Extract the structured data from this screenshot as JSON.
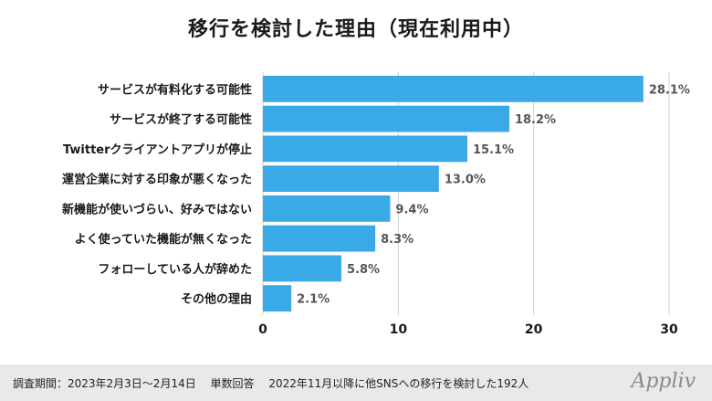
{
  "chart_data": {
    "type": "bar",
    "orientation": "horizontal",
    "title": "移行を検討した理由（現在利用中）",
    "categories": [
      "サービスが有料化する可能性",
      "サービスが終了する可能性",
      "Twitterクライアントアプリが停止",
      "運営企業に対する印象が悪くなった",
      "新機能が使いづらい、好みではない",
      "よく使っていた機能が無くなった",
      "フォローしている人が辞めた",
      "その他の理由"
    ],
    "values": [
      28.1,
      18.2,
      15.1,
      13.0,
      9.4,
      8.3,
      5.8,
      2.1
    ],
    "value_labels": [
      "28.1%",
      "18.2%",
      "15.1%",
      "13.0%",
      "9.4%",
      "8.3%",
      "5.8%",
      "2.1%"
    ],
    "xlim": [
      0,
      30
    ],
    "xticks": [
      "0",
      "10",
      "20",
      "30"
    ],
    "grid": "vertical",
    "bar_color": "#3aa9e8"
  },
  "footer": {
    "note": "調査期間：2023年2月3日〜2月14日　 単数回答　 2022年11月以降に他SNSへの移行を検討した192人",
    "brand": "Appliv"
  }
}
